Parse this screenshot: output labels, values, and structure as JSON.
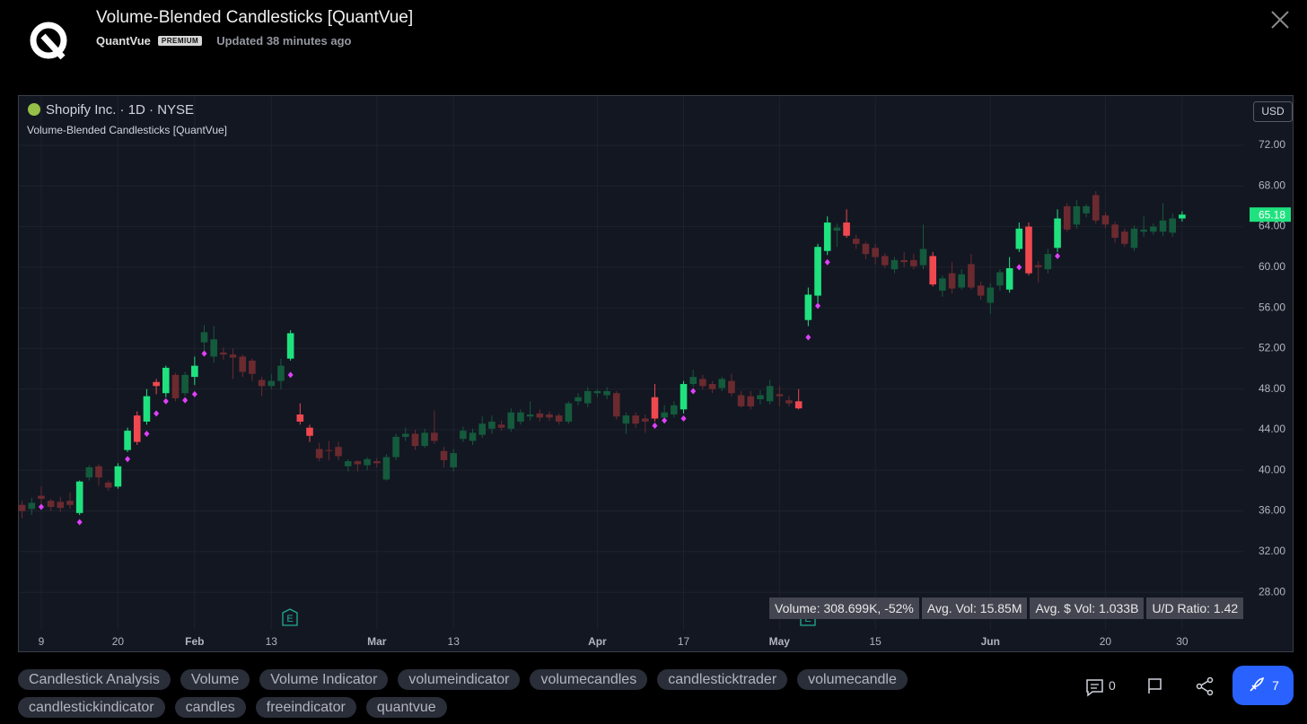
{
  "header": {
    "title": "Volume-Blended Candlesticks [QuantVue]",
    "author": "QuantVue",
    "badge": "PREMIUM",
    "updated": "Updated 38 minutes ago"
  },
  "chart_data": {
    "type": "candlestick",
    "symbol": "Shopify Inc. · 1D · NYSE",
    "indicator": "Volume-Blended Candlesticks [QuantVue]",
    "currency": "USD",
    "categories": [
      null,
      null,
      "9",
      null,
      null,
      null,
      null,
      null,
      null,
      null,
      "20",
      null,
      null,
      null,
      null,
      null,
      null,
      null,
      "Feb",
      null,
      null,
      null,
      null,
      null,
      null,
      null,
      "13",
      null,
      null,
      null,
      null,
      null,
      null,
      null,
      null,
      null,
      null,
      "Mar",
      null,
      null,
      null,
      null,
      null,
      null,
      null,
      "13",
      null,
      null,
      null,
      null,
      null,
      null,
      null,
      null,
      null,
      null,
      null,
      null,
      null,
      null,
      "Apr",
      null,
      null,
      null,
      null,
      null,
      null,
      null,
      null,
      "17",
      null,
      null,
      null,
      null,
      null,
      null,
      null,
      null,
      null,
      "May",
      null,
      null,
      null,
      null,
      null,
      null,
      null,
      null,
      null,
      "15",
      null,
      null,
      null,
      null,
      null,
      null,
      null,
      null,
      null,
      null,
      null,
      "Jun",
      null,
      null,
      null,
      null,
      null,
      null,
      null,
      null,
      null,
      null,
      null,
      "20",
      null,
      null,
      null,
      null,
      null,
      null,
      null,
      "30"
    ],
    "open": [
      36.6,
      36.2,
      37.5,
      37.0,
      36.9,
      37.0,
      35.8,
      39.3,
      40.4,
      38.8,
      38.4,
      42.0,
      45.4,
      44.8,
      48.7,
      47.6,
      49.4,
      47.6,
      49.2,
      52.6,
      51.2,
      51.6,
      51.4,
      51.2,
      50.8,
      48.9,
      48.3,
      48.8,
      51.0,
      45.5,
      44.2,
      42.1,
      42.0,
      42.3,
      40.4,
      40.9,
      40.5,
      40.9,
      39.1,
      41.3,
      43.3,
      43.6,
      42.4,
      43.7,
      41.9,
      40.3,
      43.1,
      42.9,
      43.5,
      44.1,
      44.5,
      44.1,
      44.8,
      45.3,
      45.6,
      45.5,
      45.4,
      44.8,
      46.8,
      46.6,
      47.6,
      47.4,
      47.6,
      44.6,
      45.4,
      45.1,
      47.2,
      45.2,
      45.5,
      46.0,
      48.5,
      49.0,
      48.5,
      48.1,
      48.8,
      47.4,
      47.3,
      47.0,
      46.8,
      47.5,
      46.9,
      46.8,
      54.8,
      57.2,
      61.6,
      63.6,
      64.4,
      62.8,
      62.3,
      61.9,
      61.1,
      59.8,
      60.7,
      60.7,
      60.2,
      61.1,
      57.7,
      59.4,
      58.0,
      60.3,
      58.2,
      56.5,
      58.2,
      57.8,
      61.8,
      64.0,
      60.2,
      59.8,
      61.9,
      66.0,
      64.2,
      65.3,
      67.1,
      65.1,
      64.2,
      63.5,
      61.9,
      63.5,
      63.5,
      63.5,
      63.4,
      64.8
    ],
    "high": [
      37.0,
      37.3,
      38.4,
      37.2,
      37.4,
      37.8,
      39.0,
      40.5,
      40.6,
      39.0,
      40.7,
      44.2,
      45.8,
      48.0,
      49.0,
      50.3,
      49.6,
      49.7,
      51.2,
      54.3,
      54.2,
      52.1,
      52.0,
      51.4,
      51.0,
      49.2,
      49.5,
      51.0,
      53.8,
      46.6,
      44.5,
      42.7,
      42.9,
      42.8,
      41.1,
      41.0,
      41.3,
      41.2,
      41.6,
      43.6,
      44.2,
      44.0,
      44.1,
      45.9,
      42.3,
      42.1,
      44.3,
      44.1,
      45.3,
      45.4,
      44.9,
      46.1,
      46.0,
      46.8,
      46.0,
      45.8,
      45.6,
      46.8,
      47.6,
      48.2,
      48.0,
      48.2,
      47.8,
      45.7,
      45.7,
      45.5,
      48.5,
      46.4,
      46.8,
      48.8,
      49.9,
      49.4,
      48.8,
      49.2,
      49.5,
      47.8,
      47.8,
      47.9,
      48.9,
      48.3,
      47.3,
      48.0,
      58.0,
      62.3,
      65.0,
      64.3,
      65.7,
      63.2,
      62.5,
      62.3,
      61.4,
      61.0,
      61.5,
      61.3,
      64.2,
      61.5,
      59.2,
      60.5,
      59.8,
      61.3,
      58.6,
      58.4,
      59.8,
      61.0,
      64.4,
      64.4,
      60.6,
      61.8,
      65.7,
      66.3,
      66.6,
      66.2,
      67.5,
      65.4,
      64.5,
      63.8,
      64.1,
      65.0,
      64.3,
      66.3,
      65.3,
      65.5
    ],
    "low": [
      35.3,
      35.6,
      36.4,
      36.0,
      35.9,
      36.2,
      35.6,
      39.0,
      38.5,
      38.0,
      38.2,
      41.8,
      42.5,
      44.5,
      47.5,
      47.2,
      46.8,
      47.3,
      48.4,
      51.8,
      50.6,
      50.9,
      49.0,
      49.2,
      48.8,
      47.3,
      48.0,
      48.0,
      50.8,
      44.5,
      42.8,
      40.9,
      41.0,
      41.0,
      39.9,
      39.9,
      40.0,
      40.3,
      39.0,
      41.0,
      42.9,
      42.0,
      42.2,
      42.6,
      40.3,
      39.9,
      42.8,
      42.5,
      43.2,
      43.6,
      43.9,
      43.8,
      44.5,
      44.9,
      44.8,
      44.9,
      44.5,
      44.6,
      46.4,
      46.2,
      47.2,
      47.0,
      45.0,
      43.6,
      44.2,
      43.7,
      44.8,
      44.9,
      45.2,
      45.6,
      48.2,
      48.0,
      47.6,
      47.8,
      47.3,
      46.2,
      46.0,
      46.5,
      46.5,
      46.3,
      46.3,
      46.0,
      54.2,
      56.5,
      61.2,
      62.0,
      62.9,
      61.8,
      60.8,
      60.3,
      59.9,
      59.4,
      60.0,
      59.8,
      59.8,
      58.1,
      57.1,
      57.4,
      57.8,
      57.8,
      56.8,
      55.4,
      57.7,
      57.5,
      61.5,
      59.2,
      58.5,
      59.4,
      61.5,
      63.5,
      63.8,
      64.9,
      64.3,
      63.8,
      62.4,
      62.0,
      61.6,
      63.0,
      63.2,
      63.1,
      63.0,
      64.5
    ],
    "close": [
      36.0,
      36.8,
      37.2,
      36.4,
      36.3,
      36.6,
      38.9,
      40.3,
      39.3,
      38.3,
      40.4,
      43.9,
      42.8,
      47.3,
      48.3,
      50.1,
      47.1,
      49.4,
      50.3,
      53.6,
      52.9,
      51.4,
      51.1,
      49.7,
      49.5,
      48.3,
      48.8,
      50.3,
      53.5,
      44.8,
      43.4,
      41.2,
      41.9,
      41.4,
      40.9,
      40.6,
      41.1,
      40.7,
      41.3,
      43.3,
      43.6,
      42.4,
      43.7,
      42.9,
      41.0,
      41.7,
      43.9,
      43.7,
      44.6,
      44.8,
      44.2,
      45.7,
      45.7,
      45.5,
      45.2,
      45.2,
      44.8,
      46.6,
      47.2,
      47.8,
      47.8,
      47.8,
      45.3,
      45.4,
      44.6,
      44.8,
      45.1,
      45.7,
      46.4,
      48.5,
      49.2,
      48.3,
      48.0,
      49.0,
      47.6,
      46.3,
      46.3,
      47.4,
      48.3,
      47.3,
      46.6,
      46.1,
      57.3,
      62.0,
      64.4,
      63.9,
      63.1,
      62.3,
      61.3,
      61.0,
      60.2,
      60.7,
      60.5,
      60.1,
      61.8,
      58.3,
      58.9,
      57.9,
      59.3,
      58.0,
      57.2,
      58.0,
      59.5,
      59.9,
      63.8,
      59.4,
      60.0,
      61.3,
      64.8,
      63.7,
      66.0,
      66.0,
      64.6,
      64.2,
      62.9,
      62.3,
      63.8,
      63.7,
      64.0,
      64.6,
      64.8,
      65.18
    ],
    "colors": [
      "#6b2a2f",
      "#145a3c",
      "#6b2a2f",
      "#6b2a2f",
      "#6b2a2f",
      "#6b2a2f",
      "#1fe27f",
      "#145a3c",
      "#6b2a2f",
      "#6b2a2f",
      "#1fe27f",
      "#1fe27f",
      "#f0484f",
      "#1fe27f",
      "#f0484f",
      "#1fe27f",
      "#6b2a2f",
      "#145a3c",
      "#1fe27f",
      "#145a3c",
      "#145a3c",
      "#6b2a2f",
      "#6b2a2f",
      "#6b2a2f",
      "#6b2a2f",
      "#6b2a2f",
      "#145a3c",
      "#145a3c",
      "#1fe27f",
      "#f0484f",
      "#f0484f",
      "#6b2a2f",
      "#6b2a2f",
      "#6b2a2f",
      "#145a3c",
      "#6b2a2f",
      "#145a3c",
      "#6b2a2f",
      "#145a3c",
      "#145a3c",
      "#145a3c",
      "#6b2a2f",
      "#145a3c",
      "#6b2a2f",
      "#6b2a2f",
      "#145a3c",
      "#145a3c",
      "#145a3c",
      "#145a3c",
      "#145a3c",
      "#6b2a2f",
      "#145a3c",
      "#145a3c",
      "#145a3c",
      "#6b2a2f",
      "#6b2a2f",
      "#6b2a2f",
      "#145a3c",
      "#145a3c",
      "#145a3c",
      "#145a3c",
      "#145a3c",
      "#6b2a2f",
      "#145a3c",
      "#6b2a2f",
      "#6b2a2f",
      "#f0484f",
      "#145a3c",
      "#145a3c",
      "#1fe27f",
      "#145a3c",
      "#6b2a2f",
      "#6b2a2f",
      "#145a3c",
      "#6b2a2f",
      "#6b2a2f",
      "#6b2a2f",
      "#145a3c",
      "#145a3c",
      "#6b2a2f",
      "#6b2a2f",
      "#f0484f",
      "#1fe27f",
      "#1fe27f",
      "#1fe27f",
      "#145a3c",
      "#f0484f",
      "#6b2a2f",
      "#6b2a2f",
      "#6b2a2f",
      "#6b2a2f",
      "#145a3c",
      "#6b2a2f",
      "#6b2a2f",
      "#145a3c",
      "#f0484f",
      "#145a3c",
      "#6b2a2f",
      "#145a3c",
      "#6b2a2f",
      "#6b2a2f",
      "#145a3c",
      "#145a3c",
      "#1fe27f",
      "#1fe27f",
      "#f0484f",
      "#6b2a2f",
      "#145a3c",
      "#1fe27f",
      "#6b2a2f",
      "#145a3c",
      "#145a3c",
      "#6b2a2f",
      "#6b2a2f",
      "#6b2a2f",
      "#6b2a2f",
      "#145a3c",
      "#145a3c",
      "#145a3c",
      "#145a3c",
      "#145a3c",
      "#1fe27f"
    ],
    "signals": [
      null,
      null,
      36.4,
      null,
      null,
      null,
      34.9,
      null,
      null,
      null,
      null,
      41.1,
      null,
      43.6,
      45.6,
      46.8,
      null,
      46.9,
      47.5,
      51.5,
      null,
      null,
      null,
      null,
      null,
      null,
      null,
      null,
      49.4,
      null,
      null,
      null,
      null,
      null,
      null,
      null,
      null,
      null,
      null,
      null,
      null,
      null,
      null,
      null,
      null,
      null,
      null,
      null,
      null,
      null,
      null,
      null,
      null,
      null,
      null,
      null,
      null,
      null,
      null,
      null,
      null,
      null,
      null,
      null,
      null,
      null,
      44.4,
      44.9,
      null,
      45.1,
      47.8,
      null,
      null,
      null,
      null,
      null,
      null,
      null,
      null,
      null,
      null,
      null,
      53.1,
      56.2,
      60.5,
      null,
      null,
      null,
      null,
      null,
      null,
      null,
      null,
      null,
      null,
      null,
      null,
      null,
      null,
      null,
      null,
      null,
      null,
      null,
      60.0,
      null,
      null,
      null,
      61.1,
      null,
      null,
      null,
      null,
      null,
      null,
      null,
      null,
      null,
      null,
      null,
      null,
      null
    ],
    "signal_color": "#e040fb",
    "last_price": 65.18,
    "last_price_color": "#1fe27f",
    "earnings_label": "E",
    "stats": [
      "Volume: 308.699K, -52%",
      "Avg. Vol: 15.85M",
      "Avg. $ Vol: 1.033B",
      "U/D Ratio: 1.42"
    ],
    "ylim": [
      24.3,
      76.77
    ],
    "yticks": [
      {
        "value": 28,
        "label": "28.00"
      },
      {
        "value": 32,
        "label": "32.00"
      },
      {
        "value": 36,
        "label": "36.00"
      },
      {
        "value": 40,
        "label": "40.00"
      },
      {
        "value": 44,
        "label": "44.00"
      },
      {
        "value": 48,
        "label": "48.00"
      },
      {
        "value": 52,
        "label": "52.00"
      },
      {
        "value": 56,
        "label": "56.00"
      },
      {
        "value": 60,
        "label": "60.00"
      },
      {
        "value": 64,
        "label": "64.00"
      },
      {
        "value": 68,
        "label": "68.00"
      },
      {
        "value": 72,
        "label": "72.00"
      }
    ],
    "grid": true
  },
  "tags": [
    "Candlestick Analysis",
    "Volume",
    "Volume Indicator",
    "volumeindicator",
    "volumecandles",
    "candlesticktrader",
    "volumecandle",
    "candlestickindicator",
    "candles",
    "freeindicator",
    "quantvue"
  ],
  "footer": {
    "comments": 0,
    "boosts": 7
  }
}
